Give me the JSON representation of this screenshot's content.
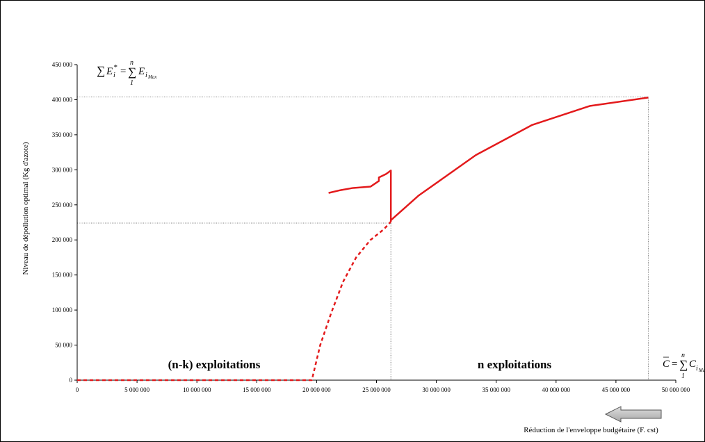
{
  "chart_data": {
    "type": "line",
    "title": "",
    "xlabel": "Réduction de l'enveloppe budgétaire (F. cst)",
    "ylabel": "Niveau de dépollution optimal (Kg d'azote)",
    "xlim": [
      0,
      50000000
    ],
    "ylim": [
      0,
      450000
    ],
    "grid": false,
    "x_ticks": [
      0,
      5000000,
      10000000,
      15000000,
      20000000,
      25000000,
      30000000,
      35000000,
      40000000,
      45000000,
      50000000
    ],
    "x_tick_labels": [
      "0",
      "5 000 000",
      "10 000 000",
      "15 000 000",
      "20 000 000",
      "25 000 000",
      "30 000 000",
      "35 000 000",
      "40 000 000",
      "45 000 000",
      "50 000 000"
    ],
    "y_ticks": [
      0,
      50000,
      100000,
      150000,
      200000,
      250000,
      300000,
      350000,
      400000,
      450000
    ],
    "y_tick_labels": [
      "0",
      "50 000",
      "100 000",
      "150 000",
      "200 000",
      "250 000",
      "300 000",
      "350 000",
      "400 000",
      "450 000"
    ],
    "series": [
      {
        "style": "solid",
        "color": "#e31a1c",
        "points": [
          [
            26200000,
            228000
          ],
          [
            28500000,
            263000
          ],
          [
            33300000,
            321000
          ],
          [
            38000000,
            364000
          ],
          [
            42800000,
            391000
          ],
          [
            47700000,
            403000
          ]
        ]
      },
      {
        "style": "solid",
        "color": "#e31a1c",
        "points": [
          [
            21000000,
            267000
          ],
          [
            22000000,
            271000
          ],
          [
            23000000,
            274000
          ],
          [
            24500000,
            276000
          ],
          [
            25200000,
            284000
          ],
          [
            25200000,
            289000
          ],
          [
            25800000,
            294000
          ],
          [
            26200000,
            299000
          ],
          [
            26200000,
            226000
          ]
        ]
      },
      {
        "style": "dashed",
        "color": "#e31a1c",
        "points": [
          [
            0,
            0
          ],
          [
            19600000,
            0
          ],
          [
            20300000,
            50000
          ],
          [
            21200000,
            95000
          ],
          [
            22200000,
            140000
          ],
          [
            23300000,
            175000
          ],
          [
            24500000,
            200000
          ],
          [
            25600000,
            215000
          ],
          [
            26200000,
            226000
          ]
        ]
      }
    ],
    "reference_lines": [
      {
        "points": [
          [
            0,
            404000
          ],
          [
            47700000,
            404000
          ]
        ],
        "style": "dotted"
      },
      {
        "points": [
          [
            47700000,
            404000
          ],
          [
            47700000,
            0
          ]
        ],
        "style": "dotted"
      },
      {
        "points": [
          [
            0,
            224000
          ],
          [
            26200000,
            224000
          ]
        ],
        "style": "dotted"
      },
      {
        "points": [
          [
            26200000,
            224000
          ],
          [
            26200000,
            0
          ]
        ],
        "style": "dotted"
      }
    ],
    "annotations": {
      "left_region": "(n-k) exploitations",
      "right_region": "n exploitations",
      "top_formula": {
        "sum": "∑",
        "e_star": "E",
        "i": "i",
        "star": "*",
        "eq": "=",
        "sum2": "∑",
        "n": "n",
        "one": "1",
        "e_max": "E",
        "i_sub": "i",
        "max_sub": "Max"
      },
      "right_formula": {
        "c_bar": "C",
        "eq": "=",
        "sum": "∑",
        "n": "n",
        "one": "1",
        "c": "C",
        "i_sub": "i",
        "max_sub": "Ma"
      }
    }
  }
}
